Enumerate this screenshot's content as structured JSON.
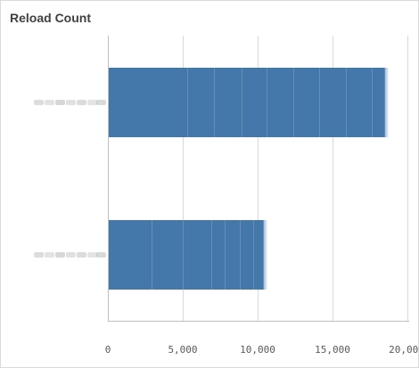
{
  "panel": {
    "title": "Reload Count"
  },
  "chart_data": {
    "type": "bar",
    "orientation": "horizontal",
    "title": "Reload Count",
    "categories": [
      "",
      ""
    ],
    "category_labels_blurred": true,
    "values": [
      18500,
      10400
    ],
    "segments": [
      [
        0,
        5300,
        7100,
        8900,
        10600,
        12400,
        14100,
        15900,
        17600,
        18500
      ],
      [
        0,
        2900,
        5000,
        6900,
        7800,
        8800,
        9700,
        10400
      ]
    ],
    "xlim": [
      0,
      20000
    ],
    "xticks": [
      0,
      5000,
      10000,
      15000,
      20000
    ],
    "xtick_labels": [
      "0",
      "5,000",
      "10,000",
      "15,000",
      "20,000"
    ],
    "grid": true,
    "legend": "none",
    "bar_color": "#4477aa",
    "grid_color": "#d9d9d9",
    "axis_color": "#bfbfbf"
  }
}
